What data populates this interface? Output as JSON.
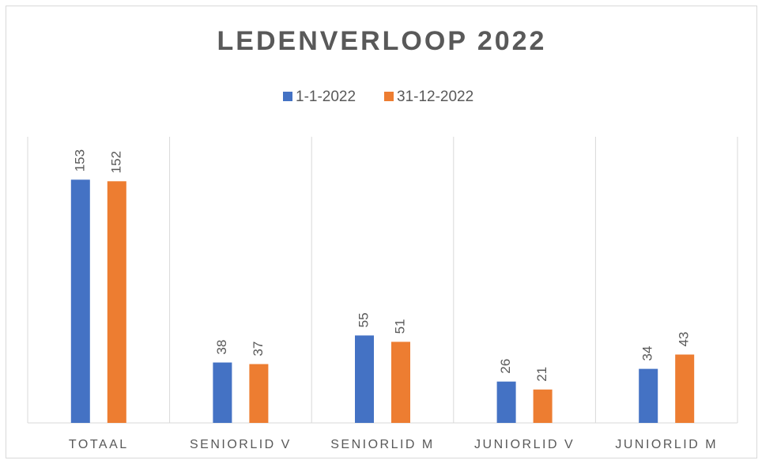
{
  "chart_data": {
    "type": "bar",
    "title": "LEDENVERLOOP 2022",
    "categories": [
      "TOTAAL",
      "SENIORLID V",
      "SENIORLID M",
      "JUNIORLID V",
      "JUNIORLID M"
    ],
    "series": [
      {
        "name": "1-1-2022",
        "color": "#4472c4",
        "values": [
          153,
          38,
          55,
          26,
          34
        ]
      },
      {
        "name": "31-12-2022",
        "color": "#ed7d31",
        "values": [
          152,
          37,
          51,
          21,
          43
        ]
      }
    ],
    "ylim": [
      0,
      180
    ],
    "legend": "top"
  }
}
